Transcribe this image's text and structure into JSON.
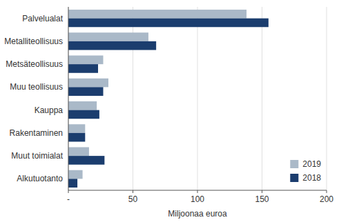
{
  "chart_data": {
    "type": "bar",
    "orientation": "horizontal",
    "categories": [
      "Palvelualat",
      "Metalliteollisuus",
      "Metsäteollisuus",
      "Muu teollisuus",
      "Kauppa",
      "Rakentaminen",
      "Muut toimialat",
      "Alkutuotanto"
    ],
    "series": [
      {
        "name": "2019",
        "color": "#aab9c8",
        "values": [
          138,
          62,
          27,
          31,
          22,
          13,
          16,
          11
        ]
      },
      {
        "name": "2018",
        "color": "#1b3d6e",
        "values": [
          155,
          68,
          23,
          27,
          24,
          13,
          28,
          7
        ]
      }
    ],
    "xlabel": "Miljoonaa euroa",
    "xlim": [
      0,
      200
    ],
    "xticks": [
      {
        "value": 0,
        "label": "-"
      },
      50,
      100,
      150,
      200
    ],
    "grid": true,
    "legend": "lower right"
  }
}
